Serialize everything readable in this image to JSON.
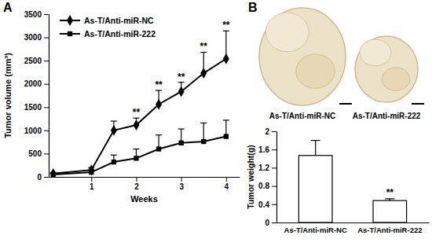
{
  "chart_data": [
    {
      "type": "line",
      "title": "A",
      "xlabel": "Weeks",
      "ylabel": "Tumor volume (mm³)",
      "x": [
        0.15,
        1,
        1.5,
        2,
        2.5,
        3,
        3.5,
        4
      ],
      "xlim": [
        0.05,
        4.3
      ],
      "xticks": [
        1,
        2,
        3,
        4
      ],
      "ylim": [
        0,
        3500
      ],
      "yticks": [
        0,
        500,
        1000,
        1500,
        2000,
        2500,
        3000,
        3500
      ],
      "legend": "upper left",
      "series": [
        {
          "name": "As-T/Anti-miR-NC",
          "color": "#000000",
          "marker": "diamond",
          "values": [
            70,
            150,
            1000,
            1115,
            1560,
            1835,
            2230,
            2540
          ],
          "errors": [
            20,
            50,
            200,
            150,
            300,
            200,
            450,
            600
          ]
        },
        {
          "name": "As-T/Anti-miR-222",
          "color": "#000000",
          "marker": "square",
          "values": [
            50,
            100,
            320,
            400,
            600,
            730,
            760,
            870
          ],
          "errors": [
            20,
            40,
            150,
            200,
            300,
            300,
            400,
            350
          ]
        }
      ],
      "annotations": [
        {
          "x": 2,
          "text": "**"
        },
        {
          "x": 2.5,
          "text": "**"
        },
        {
          "x": 3,
          "text": "**"
        },
        {
          "x": 3.5,
          "text": "**"
        },
        {
          "x": 4,
          "text": "**"
        }
      ]
    },
    {
      "type": "bar",
      "title": "B",
      "ylabel": "Tumor weight(g)",
      "categories": [
        "As-T/Anti-miR-NC",
        "As-T/Anti-miR-222"
      ],
      "values": [
        1.47,
        0.48
      ],
      "errors": [
        0.33,
        0.04
      ],
      "color": "#ffffff",
      "ylim": [
        0,
        2
      ],
      "yticks": [
        0,
        0.4,
        0.8,
        1.2,
        1.6,
        2
      ],
      "annotations": [
        {
          "category": "As-T/Anti-miR-222",
          "text": "**"
        }
      ]
    }
  ],
  "photos": {
    "labels": [
      "As-T/Anti-miR-NC",
      "As-T/Anti-miR-222"
    ]
  }
}
